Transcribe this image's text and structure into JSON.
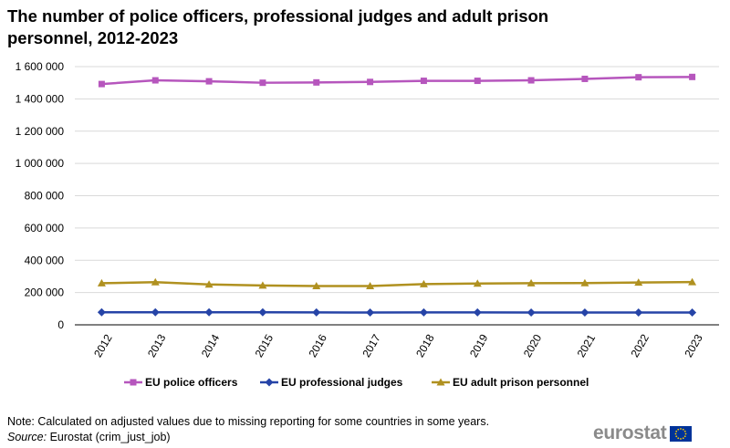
{
  "title": "The number of police officers, professional judges and adult prison personnel, 2012-2023",
  "note": "Note: Calculated on adjusted values due to missing reporting for some countries in some years.",
  "source_label": "Source:",
  "source_text": "Eurostat (crim_just_job)",
  "logo_text": "eurostat",
  "chart_data": {
    "type": "line",
    "title": "The number of police officers, professional judges and adult prison personnel, 2012-2023",
    "xlabel": "",
    "ylabel": "",
    "categories": [
      "2012",
      "2013",
      "2014",
      "2015",
      "2016",
      "2017",
      "2018",
      "2019",
      "2020",
      "2021",
      "2022",
      "2023"
    ],
    "ylim": [
      0,
      1600000
    ],
    "yticks": [
      0,
      200000,
      400000,
      600000,
      800000,
      1000000,
      1200000,
      1400000,
      1600000
    ],
    "ytick_labels": [
      "0",
      "200 000",
      "400 000",
      "600 000",
      "800 000",
      "1 000 000",
      "1 200 000",
      "1 400 000",
      "1 600 000"
    ],
    "grid": true,
    "legend_position": "bottom",
    "series": [
      {
        "name": "EU police officers",
        "color": "#b656bd",
        "marker": "square",
        "values": [
          1492000,
          1515000,
          1509000,
          1500000,
          1502000,
          1505000,
          1512000,
          1512000,
          1515000,
          1524000,
          1534000,
          1536000
        ]
      },
      {
        "name": "EU professional judges",
        "color": "#2644a7",
        "marker": "diamond",
        "values": [
          78000,
          78000,
          78000,
          78000,
          77000,
          76000,
          77000,
          77000,
          76000,
          76000,
          76000,
          76000
        ]
      },
      {
        "name": "EU adult prison personnel",
        "color": "#b09120",
        "marker": "triangle",
        "values": [
          258000,
          264000,
          250000,
          244000,
          240000,
          240000,
          252000,
          256000,
          258000,
          259000,
          262000,
          265000
        ]
      }
    ]
  }
}
